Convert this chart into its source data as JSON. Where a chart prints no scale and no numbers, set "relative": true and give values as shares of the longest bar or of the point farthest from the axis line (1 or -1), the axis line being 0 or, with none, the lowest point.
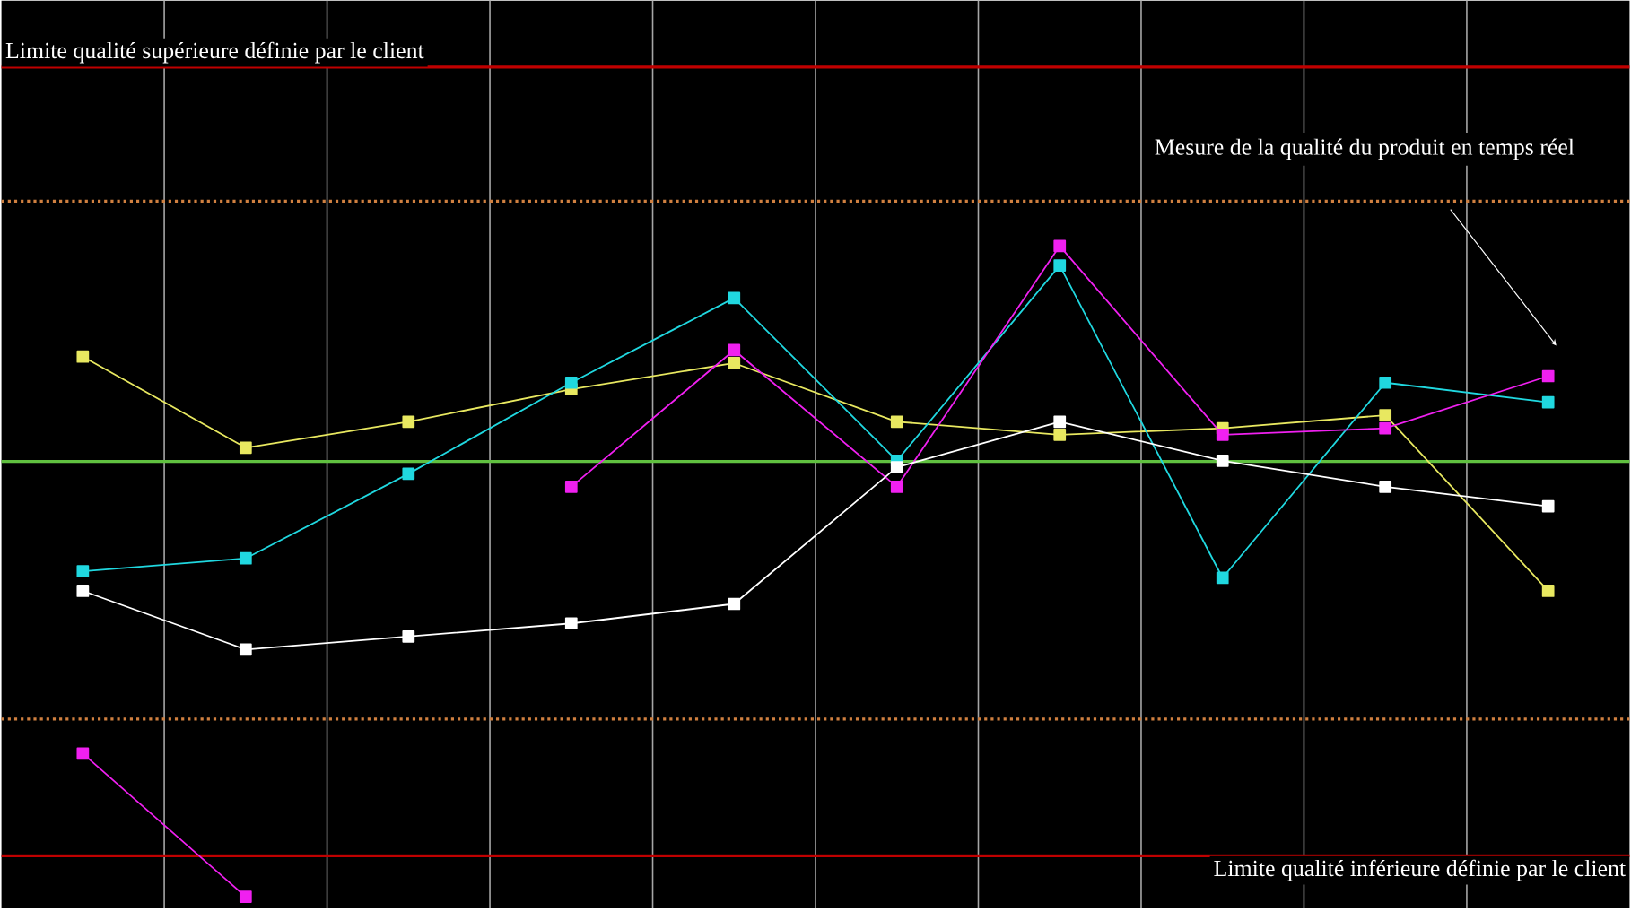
{
  "chart_data": {
    "type": "line",
    "relative": true,
    "categories": [
      null,
      null,
      null,
      null,
      null,
      null,
      null,
      null,
      null,
      null
    ],
    "series": [
      {
        "color": "#e8e860",
        "values": [
          0.83,
          0.69,
          0.73,
          0.78,
          0.82,
          0.73,
          0.71,
          0.72,
          0.74,
          0.47
        ]
      },
      {
        "color": "#20d8e0",
        "values": [
          0.5,
          0.52,
          0.65,
          0.79,
          0.92,
          0.67,
          0.97,
          0.49,
          0.79,
          0.76
        ]
      },
      {
        "color": "#f020f0",
        "values": [
          0.22,
          0.0,
          null,
          0.63,
          0.84,
          0.63,
          1.0,
          0.71,
          0.72,
          0.8
        ]
      },
      {
        "color": "#ffffff",
        "values": [
          0.47,
          0.38,
          0.4,
          0.42,
          0.45,
          0.66,
          0.73,
          0.67,
          0.63,
          0.6
        ]
      }
    ],
    "ref_lines": [
      {
        "axis": "y",
        "value": 1.275,
        "label": "Limite qualité supérieure définie par le client",
        "color": "#c00000",
        "line_style": "solid"
      },
      {
        "axis": "y",
        "value": 0.063,
        "label": "Limite qualité inférieure définie par le client",
        "color": "#c00000",
        "line_style": "solid"
      },
      {
        "axis": "y",
        "value": 1.069,
        "color": "#d08040",
        "line_style": "dotted"
      },
      {
        "axis": "y",
        "value": 0.273,
        "color": "#d08040",
        "line_style": "dotted"
      },
      {
        "axis": "y",
        "value": 0.669,
        "color": "#60c040",
        "line_style": "solid"
      }
    ],
    "annotations": [
      "Mesure de la qualité du produit en temps réel"
    ],
    "grid": "x",
    "marker": "square",
    "line_style": "solid"
  }
}
